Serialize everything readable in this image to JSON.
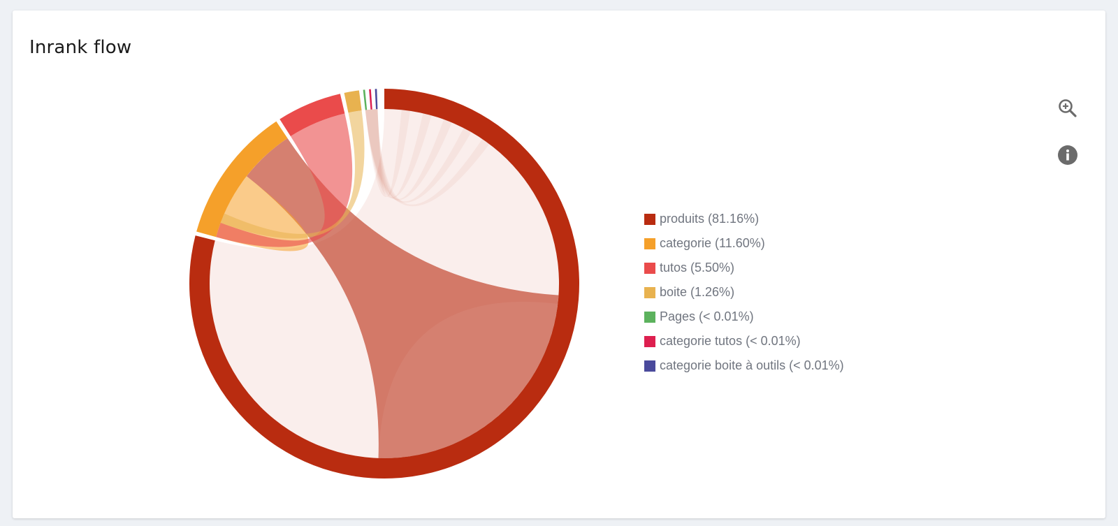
{
  "panel": {
    "title": "Inrank flow"
  },
  "toolbar": {
    "zoom_icon": "zoom-in-icon",
    "info_icon": "info-icon"
  },
  "chart_data": {
    "type": "chord",
    "title": "Inrank flow",
    "groups": [
      {
        "name": "produits",
        "label": "produits (81.16%)",
        "share_percent": 81.16,
        "color": "#b92c10"
      },
      {
        "name": "categorie",
        "label": "categorie (11.60%)",
        "share_percent": 11.6,
        "color": "#f5a02a"
      },
      {
        "name": "tutos",
        "label": "tutos (5.50%)",
        "share_percent": 5.5,
        "color": "#ea4b4b"
      },
      {
        "name": "boite",
        "label": "boite (1.26%)",
        "share_percent": 1.26,
        "color": "#e8b24f"
      },
      {
        "name": "Pages",
        "label": "Pages (< 0.01%)",
        "share_percent": 0.01,
        "color": "#5cb25d"
      },
      {
        "name": "categorie tutos",
        "label": "categorie tutos (< 0.01%)",
        "share_percent": 0.01,
        "color": "#dd1f4f"
      },
      {
        "name": "categorie boite à outils",
        "label": "categorie boite à outils (< 0.01%)",
        "share_percent": 0.01,
        "color": "#4a4a9c"
      }
    ],
    "legend_position": "right"
  }
}
